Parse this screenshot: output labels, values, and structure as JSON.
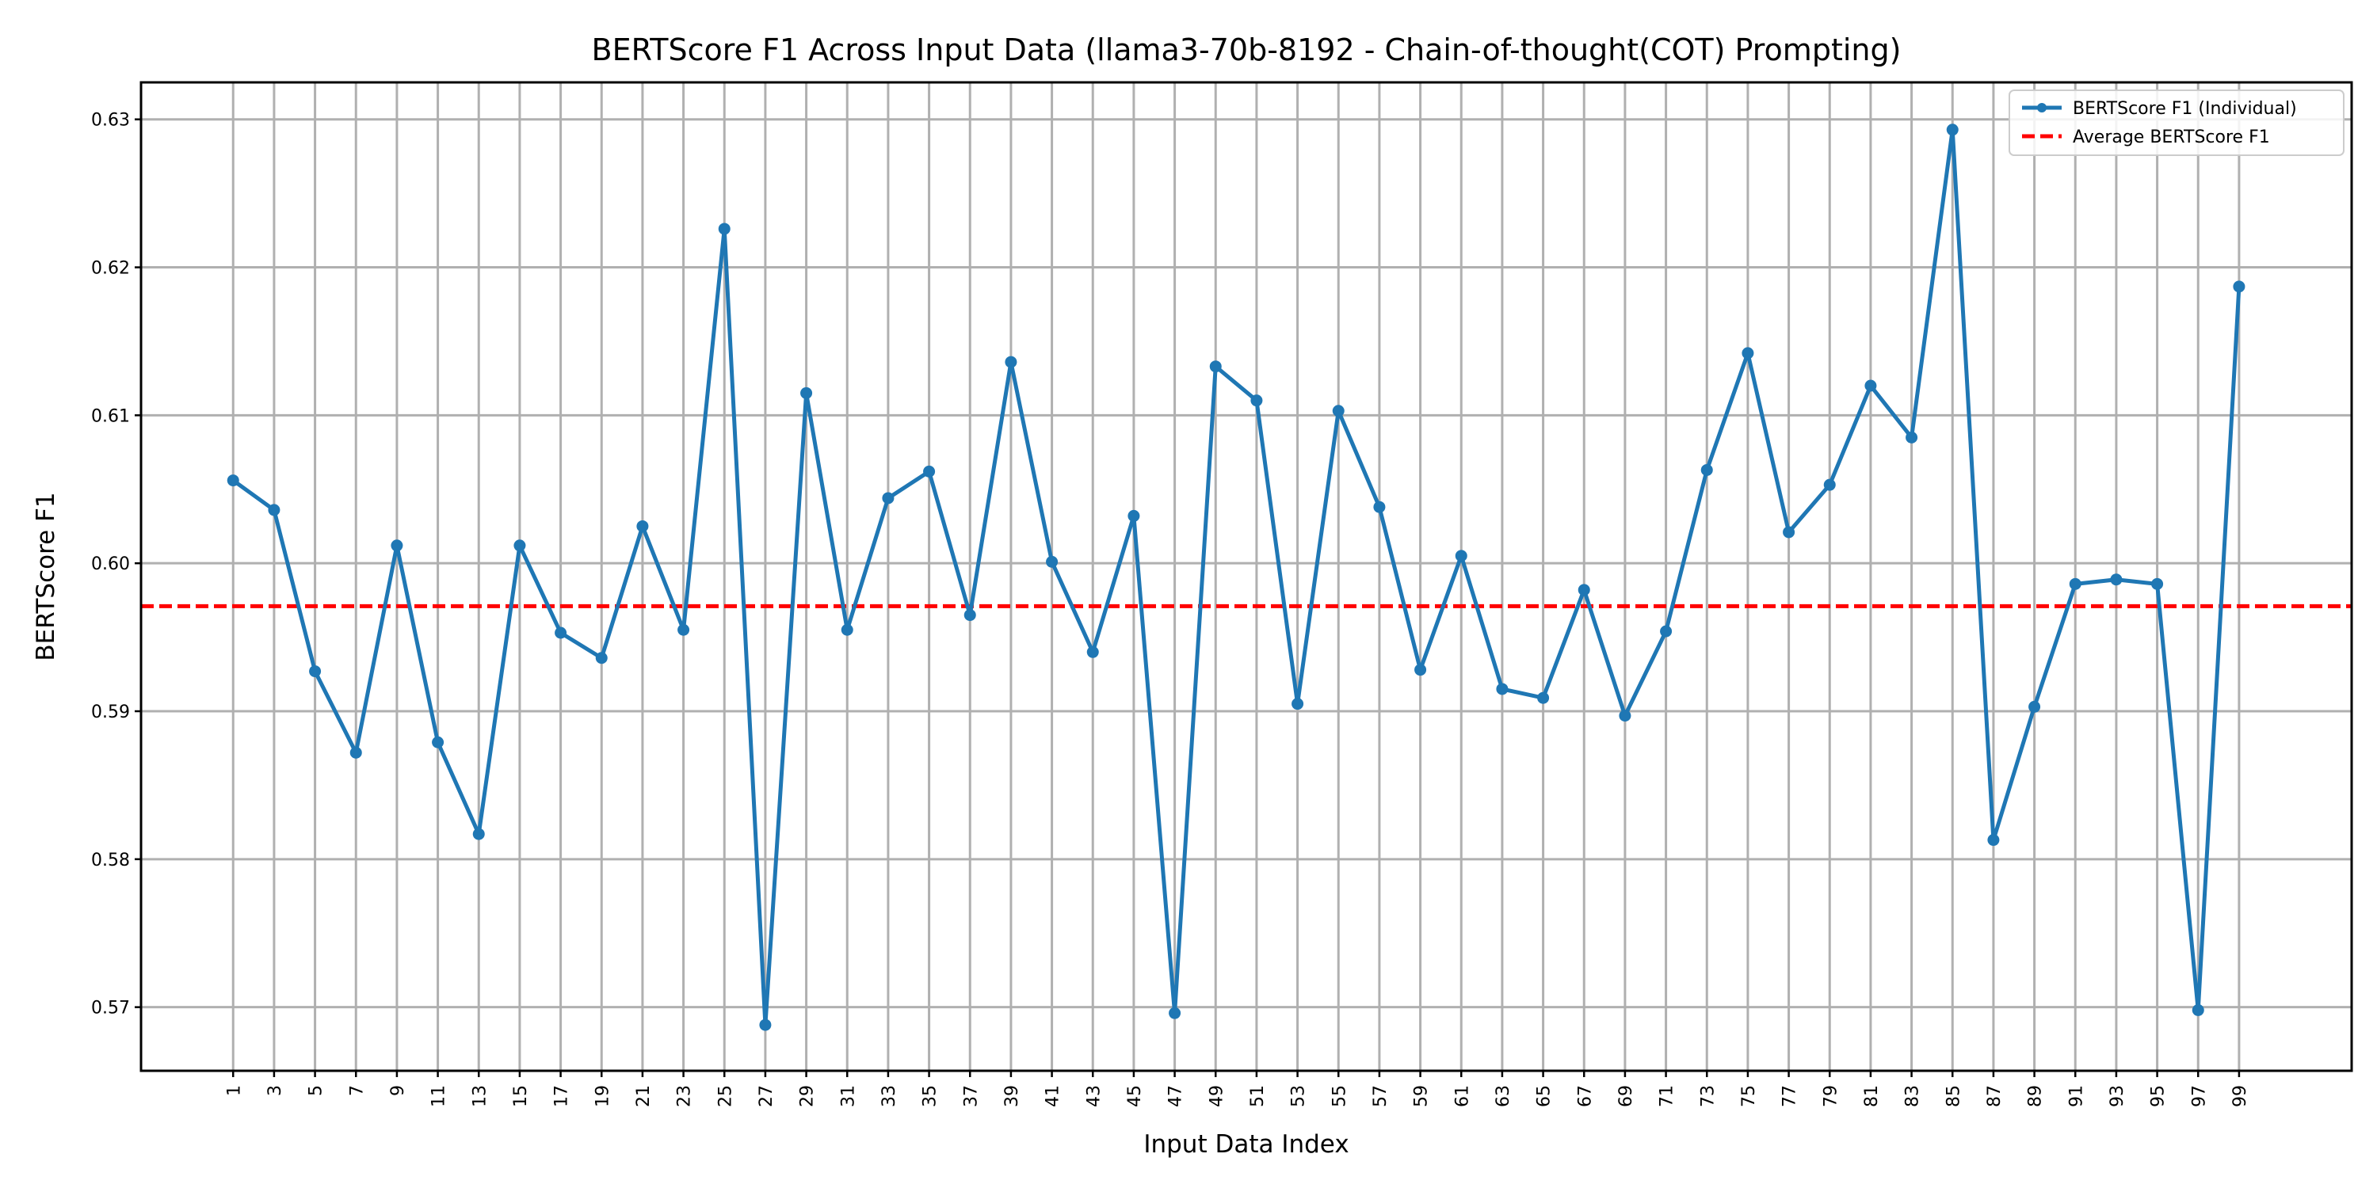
{
  "chart_data": {
    "type": "line",
    "title": "BERTScore F1 Across Input Data (llama3-70b-8192 - Chain-of-thought(COT) Prompting)",
    "xlabel": "Input Data Index",
    "ylabel": "BERTScore F1",
    "xlim": [
      -3.5,
      104.5
    ],
    "ylim": [
      0.5657,
      0.6325
    ],
    "x_tick_labels": [
      "1",
      "3",
      "5",
      "7",
      "9",
      "11",
      "13",
      "15",
      "17",
      "19",
      "21",
      "23",
      "25",
      "27",
      "29",
      "31",
      "33",
      "35",
      "37",
      "39",
      "41",
      "43",
      "45",
      "47",
      "49",
      "51",
      "53",
      "55",
      "57",
      "59",
      "61",
      "63",
      "65",
      "67",
      "69",
      "71",
      "73",
      "75",
      "77",
      "79",
      "81",
      "83",
      "85",
      "87",
      "89",
      "91",
      "93",
      "95",
      "97",
      "99"
    ],
    "y_tick_labels": [
      "0.57",
      "0.58",
      "0.59",
      "0.60",
      "0.61",
      "0.62",
      "0.63"
    ],
    "y_tick_values": [
      0.57,
      0.58,
      0.59,
      0.6,
      0.61,
      0.62,
      0.63
    ],
    "grid": true,
    "legend_position": "top-right",
    "series": [
      {
        "name": "BERTScore F1 (Individual)",
        "color": "#1f77b4",
        "style": "solid-with-markers",
        "x": [
          1,
          3,
          5,
          7,
          9,
          11,
          13,
          15,
          17,
          19,
          21,
          23,
          25,
          27,
          29,
          31,
          33,
          35,
          37,
          39,
          41,
          43,
          45,
          47,
          49,
          51,
          53,
          55,
          57,
          59,
          61,
          63,
          65,
          67,
          69,
          71,
          73,
          75,
          77,
          79,
          81,
          83,
          85,
          87,
          89,
          91,
          93,
          95,
          97,
          99
        ],
        "values": [
          0.6056,
          0.6036,
          0.5927,
          0.5872,
          0.6012,
          0.5879,
          0.5817,
          0.6012,
          0.5953,
          0.5936,
          0.6025,
          0.5955,
          0.6226,
          0.5688,
          0.6115,
          0.5955,
          0.6044,
          0.6062,
          0.5965,
          0.6136,
          0.6001,
          0.594,
          0.6032,
          0.5696,
          0.6133,
          0.611,
          0.5905,
          0.6103,
          0.6038,
          0.5928,
          0.6005,
          0.5915,
          0.5909,
          0.5982,
          0.5897,
          0.5954,
          0.6063,
          0.6142,
          0.6021,
          0.6053,
          0.612,
          0.6085,
          0.6293,
          0.5813,
          0.5903,
          0.5986,
          0.5989,
          0.5986,
          0.5698,
          0.6187
        ]
      },
      {
        "name": "Average BERTScore F1",
        "color": "#ff0000",
        "style": "dashed",
        "value": 0.5971
      }
    ]
  }
}
